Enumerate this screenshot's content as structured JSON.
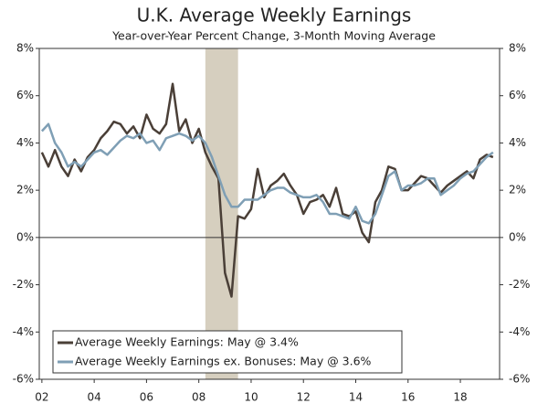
{
  "chart_data": {
    "type": "line",
    "title": "U.K. Average Weekly Earnings",
    "subtitle": "Year-over-Year Percent Change, 3-Month Moving Average",
    "x": [
      2002.0,
      2002.25,
      2002.5,
      2002.75,
      2003.0,
      2003.25,
      2003.5,
      2003.75,
      2004.0,
      2004.25,
      2004.5,
      2004.75,
      2005.0,
      2005.25,
      2005.5,
      2005.75,
      2006.0,
      2006.25,
      2006.5,
      2006.75,
      2007.0,
      2007.25,
      2007.5,
      2007.75,
      2008.0,
      2008.25,
      2008.5,
      2008.75,
      2009.0,
      2009.25,
      2009.5,
      2009.75,
      2010.0,
      2010.25,
      2010.5,
      2010.75,
      2011.0,
      2011.25,
      2011.5,
      2011.75,
      2012.0,
      2012.25,
      2012.5,
      2012.75,
      2013.0,
      2013.25,
      2013.5,
      2013.75,
      2014.0,
      2014.25,
      2014.5,
      2014.75,
      2015.0,
      2015.25,
      2015.5,
      2015.75,
      2016.0,
      2016.25,
      2016.5,
      2016.75,
      2017.0,
      2017.25,
      2017.5,
      2017.75,
      2018.0,
      2018.25,
      2018.5,
      2018.75,
      2019.0,
      2019.25
    ],
    "series": [
      {
        "name": "Average Weekly Earnings: May @ 3.4%",
        "color": "#4a3f37",
        "values": [
          3.6,
          3.0,
          3.7,
          3.0,
          2.6,
          3.3,
          2.8,
          3.4,
          3.7,
          4.2,
          4.5,
          4.9,
          4.8,
          4.4,
          4.7,
          4.2,
          5.2,
          4.6,
          4.4,
          4.8,
          6.5,
          4.5,
          5.0,
          4.0,
          4.6,
          3.6,
          3.0,
          2.5,
          -1.5,
          -2.5,
          0.9,
          0.8,
          1.2,
          2.9,
          1.7,
          2.2,
          2.4,
          2.7,
          2.2,
          1.8,
          1.0,
          1.5,
          1.6,
          1.8,
          1.3,
          2.1,
          1.0,
          0.9,
          1.1,
          0.2,
          -0.2,
          1.5,
          2.0,
          3.0,
          2.9,
          2.0,
          2.0,
          2.3,
          2.6,
          2.5,
          2.2,
          1.9,
          2.2,
          2.4,
          2.6,
          2.8,
          2.5,
          3.3,
          3.5,
          3.4
        ]
      },
      {
        "name": "Average Weekly Earnings ex. Bonuses: May @ 3.6%",
        "color": "#7f9fb5",
        "values": [
          4.5,
          4.8,
          4.0,
          3.6,
          3.0,
          3.2,
          3.0,
          3.3,
          3.6,
          3.7,
          3.5,
          3.8,
          4.1,
          4.3,
          4.2,
          4.4,
          4.0,
          4.1,
          3.7,
          4.2,
          4.3,
          4.4,
          4.3,
          4.1,
          4.3,
          4.0,
          3.4,
          2.6,
          1.8,
          1.3,
          1.3,
          1.6,
          1.6,
          1.6,
          1.8,
          2.0,
          2.1,
          2.1,
          1.9,
          1.8,
          1.7,
          1.7,
          1.8,
          1.5,
          1.0,
          1.0,
          0.9,
          0.8,
          1.3,
          0.7,
          0.6,
          1.0,
          1.8,
          2.6,
          2.8,
          2.0,
          2.2,
          2.2,
          2.3,
          2.5,
          2.5,
          1.8,
          2.0,
          2.2,
          2.5,
          2.7,
          2.8,
          3.1,
          3.4,
          3.6
        ]
      }
    ],
    "recession": [
      2008.25,
      2009.5
    ],
    "recession_color": "#d6cfbf",
    "xlim": [
      2001.9,
      2019.5
    ],
    "xticks": [
      {
        "value": 2002,
        "label": "02"
      },
      {
        "value": 2004,
        "label": "04"
      },
      {
        "value": 2006,
        "label": "06"
      },
      {
        "value": 2008,
        "label": "08"
      },
      {
        "value": 2010,
        "label": "10"
      },
      {
        "value": 2012,
        "label": "12"
      },
      {
        "value": 2014,
        "label": "14"
      },
      {
        "value": 2016,
        "label": "16"
      },
      {
        "value": 2018,
        "label": "18"
      }
    ],
    "ylim": [
      -6,
      8
    ],
    "yticks": [
      {
        "value": -6,
        "label": "-6%"
      },
      {
        "value": -4,
        "label": "-4%"
      },
      {
        "value": -2,
        "label": "-2%"
      },
      {
        "value": 0,
        "label": "0%"
      },
      {
        "value": 2,
        "label": "2%"
      },
      {
        "value": 4,
        "label": "4%"
      },
      {
        "value": 6,
        "label": "6%"
      },
      {
        "value": 8,
        "label": "8%"
      }
    ],
    "legend": "lower left"
  }
}
